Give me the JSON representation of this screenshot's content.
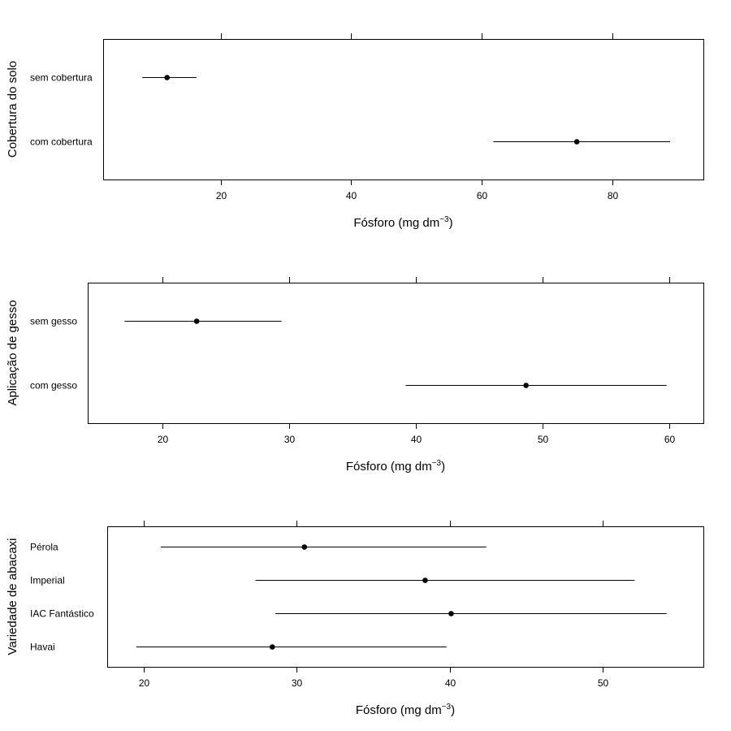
{
  "chart_data": [
    {
      "type": "dotplot-interval",
      "ylabel": "Cobertura do solo",
      "xlabel": "Fósforo (mg dm",
      "xlabel_sup": "−3",
      "xlabel_end": ")",
      "xlim": [
        2,
        94
      ],
      "xticks": [
        20,
        40,
        60,
        80
      ],
      "categories": [
        "sem cobertura",
        "com cobertura"
      ],
      "points": [
        {
          "label": "sem cobertura",
          "estimate": 11.8,
          "lower": 8.0,
          "upper": 16.3
        },
        {
          "label": "com cobertura",
          "estimate": 74.6,
          "lower": 61.8,
          "upper": 88.9
        }
      ]
    },
    {
      "type": "dotplot-interval",
      "ylabel": "Aplicação de gesso",
      "xlabel": "Fósforo (mg dm",
      "xlabel_sup": "−3",
      "xlabel_end": ")",
      "xlim": [
        14.1,
        62.7
      ],
      "xticks": [
        20,
        30,
        40,
        50,
        60
      ],
      "categories": [
        "sem gesso",
        "com gesso"
      ],
      "points": [
        {
          "label": "sem gesso",
          "estimate": 22.7,
          "lower": 17.0,
          "upper": 29.4
        },
        {
          "label": "com gesso",
          "estimate": 48.7,
          "lower": 39.2,
          "upper": 59.8
        }
      ]
    },
    {
      "type": "dotplot-interval",
      "ylabel": "Variedade de abacaxi",
      "xlabel": "Fósforo (mg dm",
      "xlabel_sup": "−3",
      "xlabel_end": ")",
      "xlim": [
        17.6,
        56.6
      ],
      "xticks": [
        20,
        30,
        40,
        50
      ],
      "categories": [
        "Pérola",
        "Imperial",
        "IAC Fantástico",
        "Havai"
      ],
      "points": [
        {
          "label": "Pérola",
          "estimate": 30.5,
          "lower": 21.1,
          "upper": 42.4
        },
        {
          "label": "Imperial",
          "estimate": 38.4,
          "lower": 27.3,
          "upper": 52.1
        },
        {
          "label": "IAC Fantástico",
          "estimate": 40.1,
          "lower": 28.6,
          "upper": 54.2
        },
        {
          "label": "Havai",
          "estimate": 28.4,
          "lower": 19.5,
          "upper": 39.8
        }
      ]
    }
  ]
}
